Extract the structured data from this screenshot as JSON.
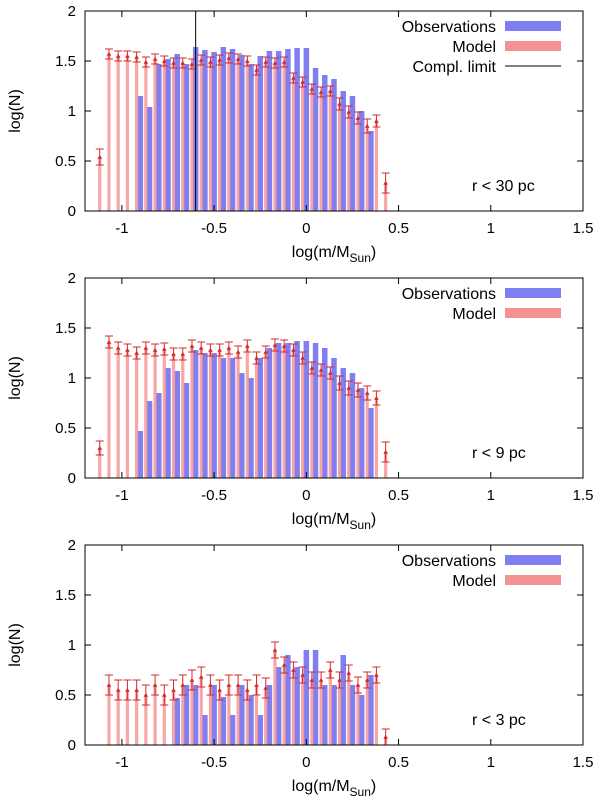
{
  "chart_data": [
    {
      "type": "bar",
      "panel_id": "panel-30pc",
      "annotation": "r < 30 pc",
      "xlabel": "log(m/M",
      "xlabel_sub": "Sun",
      "xlabel_close": ")",
      "ylabel": "log(N)",
      "xlim": [
        -1.2,
        1.5
      ],
      "ylim": [
        0,
        2
      ],
      "xticks": [
        -1,
        -0.5,
        0,
        0.5,
        1,
        1.5
      ],
      "xtick_labels": [
        "-1",
        "-0.5",
        "0",
        "0.5",
        "1",
        "1.5"
      ],
      "yticks": [
        0,
        0.5,
        1,
        1.5,
        2
      ],
      "ytick_labels": [
        "0",
        "0.5",
        "1",
        "1.5",
        "2"
      ],
      "completeness_limit_x": -0.6,
      "legend": [
        {
          "label": "Observations",
          "color": "#7f7ff2"
        },
        {
          "label": "Model",
          "color": "#f49292"
        },
        {
          "label": "Compl. limit",
          "color": "#000000"
        }
      ],
      "series": [
        {
          "name": "Observations",
          "x": [
            -0.9,
            -0.85,
            -0.8,
            -0.75,
            -0.7,
            -0.65,
            -0.6,
            -0.55,
            -0.5,
            -0.45,
            -0.4,
            -0.35,
            -0.3,
            -0.25,
            -0.2,
            -0.15,
            -0.1,
            -0.05,
            0,
            0.05,
            0.1,
            0.15,
            0.2,
            0.25,
            0.3,
            0.35
          ],
          "values": [
            1.15,
            1.04,
            1.47,
            1.52,
            1.57,
            1.47,
            1.64,
            1.61,
            1.59,
            1.64,
            1.62,
            1.56,
            1.47,
            1.55,
            1.6,
            1.6,
            1.62,
            1.63,
            1.63,
            1.43,
            1.36,
            1.32,
            1.2,
            1.15,
            1.0,
            0.8
          ]
        },
        {
          "name": "Model",
          "x": [
            -1.12,
            -1.07,
            -1.02,
            -0.97,
            -0.92,
            -0.87,
            -0.82,
            -0.77,
            -0.72,
            -0.67,
            -0.62,
            -0.57,
            -0.52,
            -0.47,
            -0.42,
            -0.37,
            -0.32,
            -0.27,
            -0.22,
            -0.17,
            -0.12,
            -0.07,
            -0.02,
            0.03,
            0.08,
            0.13,
            0.18,
            0.23,
            0.28,
            0.33,
            0.38,
            0.43
          ],
          "values": [
            0.54,
            1.57,
            1.55,
            1.55,
            1.54,
            1.49,
            1.52,
            1.5,
            1.48,
            1.48,
            1.47,
            1.51,
            1.49,
            1.51,
            1.53,
            1.52,
            1.5,
            1.41,
            1.49,
            1.48,
            1.49,
            1.33,
            1.29,
            1.22,
            1.19,
            1.2,
            1.07,
            0.99,
            0.93,
            0.85,
            0.9,
            0.28
          ],
          "errors": [
            0.08,
            0.05,
            0.05,
            0.05,
            0.05,
            0.05,
            0.05,
            0.05,
            0.05,
            0.05,
            0.05,
            0.05,
            0.05,
            0.05,
            0.05,
            0.05,
            0.05,
            0.05,
            0.05,
            0.05,
            0.05,
            0.05,
            0.05,
            0.05,
            0.05,
            0.05,
            0.06,
            0.06,
            0.06,
            0.07,
            0.06,
            0.1
          ]
        }
      ]
    },
    {
      "type": "bar",
      "panel_id": "panel-9pc",
      "annotation": "r < 9 pc",
      "xlabel": "log(m/M",
      "xlabel_sub": "Sun",
      "xlabel_close": ")",
      "ylabel": "log(N)",
      "xlim": [
        -1.2,
        1.5
      ],
      "ylim": [
        0,
        2
      ],
      "xticks": [
        -1,
        -0.5,
        0,
        0.5,
        1,
        1.5
      ],
      "xtick_labels": [
        "-1",
        "-0.5",
        "0",
        "0.5",
        "1",
        "1.5"
      ],
      "yticks": [
        0,
        0.5,
        1,
        1.5,
        2
      ],
      "ytick_labels": [
        "0",
        "0.5",
        "1",
        "1.5",
        "2"
      ],
      "legend": [
        {
          "label": "Observations",
          "color": "#7f7ff2"
        },
        {
          "label": "Model",
          "color": "#f49292"
        }
      ],
      "series": [
        {
          "name": "Observations",
          "x": [
            -0.9,
            -0.85,
            -0.8,
            -0.75,
            -0.7,
            -0.65,
            -0.6,
            -0.55,
            -0.5,
            -0.45,
            -0.4,
            -0.35,
            -0.3,
            -0.25,
            -0.2,
            -0.15,
            -0.1,
            -0.05,
            0,
            0.05,
            0.1,
            0.15,
            0.2,
            0.25,
            0.3,
            0.35
          ],
          "values": [
            0.47,
            0.77,
            0.85,
            1.1,
            1.07,
            0.95,
            1.28,
            1.25,
            1.25,
            1.2,
            1.2,
            1.05,
            1.0,
            1.2,
            1.3,
            1.35,
            1.35,
            1.37,
            1.37,
            1.35,
            1.3,
            1.2,
            1.1,
            1.05,
            0.9,
            0.7
          ]
        },
        {
          "name": "Model",
          "x": [
            -1.12,
            -1.07,
            -1.02,
            -0.97,
            -0.92,
            -0.87,
            -0.82,
            -0.77,
            -0.72,
            -0.67,
            -0.62,
            -0.57,
            -0.52,
            -0.47,
            -0.42,
            -0.37,
            -0.32,
            -0.27,
            -0.22,
            -0.17,
            -0.12,
            -0.07,
            -0.02,
            0.03,
            0.08,
            0.13,
            0.18,
            0.23,
            0.28,
            0.33,
            0.38,
            0.43
          ],
          "values": [
            0.3,
            1.36,
            1.3,
            1.28,
            1.25,
            1.3,
            1.28,
            1.29,
            1.24,
            1.24,
            1.32,
            1.3,
            1.28,
            1.28,
            1.3,
            1.26,
            1.32,
            1.2,
            1.26,
            1.33,
            1.32,
            1.28,
            1.2,
            1.1,
            1.08,
            1.05,
            0.95,
            0.9,
            0.88,
            0.85,
            0.8,
            0.26
          ],
          "errors": [
            0.07,
            0.06,
            0.06,
            0.06,
            0.06,
            0.06,
            0.06,
            0.06,
            0.06,
            0.06,
            0.06,
            0.06,
            0.06,
            0.06,
            0.06,
            0.06,
            0.06,
            0.06,
            0.06,
            0.06,
            0.06,
            0.06,
            0.06,
            0.06,
            0.06,
            0.06,
            0.07,
            0.07,
            0.07,
            0.07,
            0.07,
            0.1
          ]
        }
      ]
    },
    {
      "type": "bar",
      "panel_id": "panel-3pc",
      "annotation": "r < 3 pc",
      "xlabel": "log(m/M",
      "xlabel_sub": "Sun",
      "xlabel_close": ")",
      "ylabel": "log(N)",
      "xlim": [
        -1.2,
        1.5
      ],
      "ylim": [
        0,
        2
      ],
      "xticks": [
        -1,
        -0.5,
        0,
        0.5,
        1,
        1.5
      ],
      "xtick_labels": [
        "-1",
        "-0.5",
        "0",
        "0.5",
        "1",
        "1.5"
      ],
      "yticks": [
        0,
        0.5,
        1,
        1.5,
        2
      ],
      "ytick_labels": [
        "0",
        "0.5",
        "1",
        "1.5",
        "2"
      ],
      "legend": [
        {
          "label": "Observations",
          "color": "#7f7ff2"
        },
        {
          "label": "Model",
          "color": "#f49292"
        }
      ],
      "series": [
        {
          "name": "Observations",
          "x": [
            -0.7,
            -0.65,
            -0.6,
            -0.55,
            -0.5,
            -0.45,
            -0.4,
            -0.35,
            -0.3,
            -0.25,
            -0.2,
            -0.15,
            -0.1,
            -0.05,
            0,
            0.05,
            0.1,
            0.15,
            0.2,
            0.25,
            0.3,
            0.35
          ],
          "values": [
            0.47,
            0.6,
            0.6,
            0.3,
            0.6,
            0.48,
            0.3,
            0.6,
            0.5,
            0.3,
            0.6,
            0.78,
            0.9,
            0.78,
            0.95,
            0.95,
            0.6,
            0.6,
            0.9,
            0.6,
            0.5,
            0.7
          ]
        },
        {
          "name": "Model",
          "x": [
            -1.07,
            -1.02,
            -0.97,
            -0.92,
            -0.87,
            -0.82,
            -0.77,
            -0.72,
            -0.67,
            -0.62,
            -0.57,
            -0.52,
            -0.47,
            -0.42,
            -0.37,
            -0.32,
            -0.27,
            -0.22,
            -0.17,
            -0.12,
            -0.07,
            -0.02,
            0.03,
            0.08,
            0.13,
            0.18,
            0.23,
            0.28,
            0.33,
            0.38,
            0.43
          ],
          "values": [
            0.6,
            0.55,
            0.55,
            0.55,
            0.5,
            0.6,
            0.5,
            0.55,
            0.6,
            0.65,
            0.68,
            0.6,
            0.55,
            0.6,
            0.6,
            0.55,
            0.6,
            0.57,
            0.95,
            0.8,
            0.75,
            0.7,
            0.65,
            0.65,
            0.75,
            0.65,
            0.72,
            0.6,
            0.65,
            0.7,
            0.08
          ],
          "errors": [
            0.1,
            0.1,
            0.1,
            0.1,
            0.1,
            0.1,
            0.1,
            0.1,
            0.1,
            0.1,
            0.1,
            0.1,
            0.1,
            0.1,
            0.1,
            0.1,
            0.1,
            0.1,
            0.08,
            0.08,
            0.08,
            0.08,
            0.08,
            0.08,
            0.08,
            0.08,
            0.08,
            0.08,
            0.08,
            0.08,
            0.08
          ]
        }
      ]
    }
  ]
}
